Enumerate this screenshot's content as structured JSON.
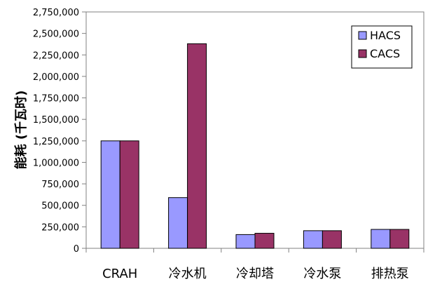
{
  "chart_data": {
    "type": "bar",
    "title": "",
    "xlabel": "",
    "ylabel": "能耗 (千瓦时)",
    "ylim": [
      0,
      2750000
    ],
    "ytick_step": 250000,
    "categories": [
      "CRAH",
      "冷水机",
      "冷却塔",
      "冷水泵",
      "排热泵"
    ],
    "series": [
      {
        "name": "HACS",
        "color": "#9999ff",
        "values": [
          1250000,
          590000,
          160000,
          205000,
          220000
        ]
      },
      {
        "name": "CACS",
        "color": "#993366",
        "values": [
          1250000,
          2380000,
          175000,
          205000,
          220000
        ]
      }
    ],
    "grid": false,
    "legend_position": "top-right"
  }
}
